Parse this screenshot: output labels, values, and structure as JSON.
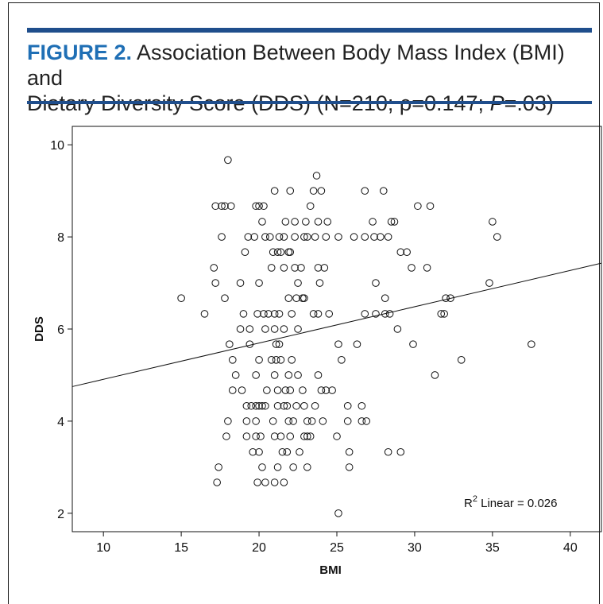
{
  "caption": {
    "label": "FIGURE 2.",
    "line1": " Association Between Body Mass Index (BMI) and",
    "line2_pre": "Dietary Diversity Score (DDS) (N=210; ρ=0.147; ",
    "line2_p": "P",
    "line2_post": "=.03)"
  },
  "colors": {
    "accent_rule": "#1f4e8c",
    "label_blue": "#1f6fb5"
  },
  "chart_data": {
    "type": "scatter",
    "xlabel": "BMI",
    "ylabel": "DDS",
    "xlim": [
      8,
      42
    ],
    "ylim": [
      1.6,
      10.4
    ],
    "xticks": [
      10,
      15,
      20,
      25,
      30,
      35,
      40
    ],
    "yticks": [
      2,
      4,
      6,
      8,
      10
    ],
    "grid": false,
    "fit_line": {
      "label": "R² Linear = 0.026",
      "r2_text": "R",
      "r2_sup": "2",
      "r2_rest": " Linear = 0.026",
      "x0": 8,
      "y0": 4.75,
      "x1": 42,
      "y1": 7.43
    },
    "points": [
      [
        18.0,
        9.67
      ],
      [
        23.7,
        9.33
      ],
      [
        21.0,
        9.0
      ],
      [
        22.0,
        9.0
      ],
      [
        23.5,
        9.0
      ],
      [
        24.0,
        9.0
      ],
      [
        26.8,
        9.0
      ],
      [
        28.0,
        9.0
      ],
      [
        17.2,
        8.67
      ],
      [
        17.6,
        8.67
      ],
      [
        17.8,
        8.67
      ],
      [
        18.2,
        8.67
      ],
      [
        19.8,
        8.67
      ],
      [
        20.0,
        8.67
      ],
      [
        20.3,
        8.67
      ],
      [
        23.3,
        8.67
      ],
      [
        30.2,
        8.67
      ],
      [
        31.0,
        8.67
      ],
      [
        20.2,
        8.33
      ],
      [
        21.7,
        8.33
      ],
      [
        22.3,
        8.33
      ],
      [
        23.0,
        8.33
      ],
      [
        23.8,
        8.33
      ],
      [
        24.4,
        8.33
      ],
      [
        27.3,
        8.33
      ],
      [
        28.5,
        8.33
      ],
      [
        28.7,
        8.33
      ],
      [
        35.0,
        8.33
      ],
      [
        17.6,
        8.0
      ],
      [
        19.3,
        8.0
      ],
      [
        19.7,
        8.0
      ],
      [
        20.4,
        8.0
      ],
      [
        20.7,
        8.0
      ],
      [
        21.3,
        8.0
      ],
      [
        21.6,
        8.0
      ],
      [
        22.3,
        8.0
      ],
      [
        22.9,
        8.0
      ],
      [
        23.1,
        8.0
      ],
      [
        23.6,
        8.0
      ],
      [
        24.3,
        8.0
      ],
      [
        25.1,
        8.0
      ],
      [
        26.1,
        8.0
      ],
      [
        26.8,
        8.0
      ],
      [
        27.4,
        8.0
      ],
      [
        27.8,
        8.0
      ],
      [
        28.3,
        8.0
      ],
      [
        35.3,
        8.0
      ],
      [
        19.1,
        7.67
      ],
      [
        20.9,
        7.67
      ],
      [
        21.2,
        7.67
      ],
      [
        21.4,
        7.67
      ],
      [
        21.9,
        7.67
      ],
      [
        22.0,
        7.67
      ],
      [
        29.1,
        7.67
      ],
      [
        29.5,
        7.67
      ],
      [
        17.1,
        7.33
      ],
      [
        20.8,
        7.33
      ],
      [
        21.6,
        7.33
      ],
      [
        22.3,
        7.33
      ],
      [
        22.7,
        7.33
      ],
      [
        23.8,
        7.33
      ],
      [
        24.2,
        7.33
      ],
      [
        29.8,
        7.33
      ],
      [
        30.8,
        7.33
      ],
      [
        17.2,
        7.0
      ],
      [
        18.8,
        7.0
      ],
      [
        20.0,
        7.0
      ],
      [
        22.5,
        7.0
      ],
      [
        23.9,
        7.0
      ],
      [
        27.5,
        7.0
      ],
      [
        34.8,
        7.0
      ],
      [
        15.0,
        6.67
      ],
      [
        17.8,
        6.67
      ],
      [
        21.9,
        6.67
      ],
      [
        22.4,
        6.67
      ],
      [
        22.8,
        6.67
      ],
      [
        22.9,
        6.67
      ],
      [
        28.1,
        6.67
      ],
      [
        32.0,
        6.67
      ],
      [
        32.3,
        6.67
      ],
      [
        16.5,
        6.33
      ],
      [
        19.0,
        6.33
      ],
      [
        19.9,
        6.33
      ],
      [
        20.3,
        6.33
      ],
      [
        20.6,
        6.33
      ],
      [
        21.0,
        6.33
      ],
      [
        21.3,
        6.33
      ],
      [
        22.1,
        6.33
      ],
      [
        23.5,
        6.33
      ],
      [
        23.8,
        6.33
      ],
      [
        24.5,
        6.33
      ],
      [
        26.8,
        6.33
      ],
      [
        27.5,
        6.33
      ],
      [
        28.1,
        6.33
      ],
      [
        28.4,
        6.33
      ],
      [
        31.7,
        6.33
      ],
      [
        31.9,
        6.33
      ],
      [
        18.8,
        6.0
      ],
      [
        19.4,
        6.0
      ],
      [
        20.4,
        6.0
      ],
      [
        21.0,
        6.0
      ],
      [
        21.6,
        6.0
      ],
      [
        22.5,
        6.0
      ],
      [
        28.9,
        6.0
      ],
      [
        18.1,
        5.67
      ],
      [
        19.4,
        5.67
      ],
      [
        21.1,
        5.67
      ],
      [
        21.3,
        5.67
      ],
      [
        25.1,
        5.67
      ],
      [
        26.3,
        5.67
      ],
      [
        29.9,
        5.67
      ],
      [
        37.5,
        5.67
      ],
      [
        18.3,
        5.33
      ],
      [
        20.0,
        5.33
      ],
      [
        20.8,
        5.33
      ],
      [
        21.1,
        5.33
      ],
      [
        21.4,
        5.33
      ],
      [
        22.1,
        5.33
      ],
      [
        25.3,
        5.33
      ],
      [
        33.0,
        5.33
      ],
      [
        18.5,
        5.0
      ],
      [
        19.8,
        5.0
      ],
      [
        21.0,
        5.0
      ],
      [
        21.9,
        5.0
      ],
      [
        22.5,
        5.0
      ],
      [
        23.8,
        5.0
      ],
      [
        31.3,
        5.0
      ],
      [
        18.3,
        4.67
      ],
      [
        18.9,
        4.67
      ],
      [
        20.5,
        4.67
      ],
      [
        21.2,
        4.67
      ],
      [
        21.7,
        4.67
      ],
      [
        22.0,
        4.67
      ],
      [
        22.8,
        4.67
      ],
      [
        24.0,
        4.67
      ],
      [
        24.3,
        4.67
      ],
      [
        24.7,
        4.67
      ],
      [
        19.2,
        4.33
      ],
      [
        19.5,
        4.33
      ],
      [
        19.8,
        4.33
      ],
      [
        20.0,
        4.33
      ],
      [
        20.2,
        4.33
      ],
      [
        20.4,
        4.33
      ],
      [
        21.2,
        4.33
      ],
      [
        21.6,
        4.33
      ],
      [
        21.8,
        4.33
      ],
      [
        22.4,
        4.33
      ],
      [
        22.9,
        4.33
      ],
      [
        23.6,
        4.33
      ],
      [
        25.7,
        4.33
      ],
      [
        26.6,
        4.33
      ],
      [
        18.0,
        4.0
      ],
      [
        19.2,
        4.0
      ],
      [
        19.8,
        4.0
      ],
      [
        20.9,
        4.0
      ],
      [
        21.9,
        4.0
      ],
      [
        22.2,
        4.0
      ],
      [
        23.1,
        4.0
      ],
      [
        23.4,
        4.0
      ],
      [
        24.1,
        4.0
      ],
      [
        25.7,
        4.0
      ],
      [
        26.6,
        4.0
      ],
      [
        26.9,
        4.0
      ],
      [
        17.9,
        3.67
      ],
      [
        19.2,
        3.67
      ],
      [
        19.8,
        3.67
      ],
      [
        20.1,
        3.67
      ],
      [
        21.0,
        3.67
      ],
      [
        21.4,
        3.67
      ],
      [
        22.0,
        3.67
      ],
      [
        22.9,
        3.67
      ],
      [
        23.1,
        3.67
      ],
      [
        23.3,
        3.67
      ],
      [
        25.0,
        3.67
      ],
      [
        19.6,
        3.33
      ],
      [
        20.0,
        3.33
      ],
      [
        21.5,
        3.33
      ],
      [
        21.8,
        3.33
      ],
      [
        22.6,
        3.33
      ],
      [
        25.8,
        3.33
      ],
      [
        28.3,
        3.33
      ],
      [
        29.1,
        3.33
      ],
      [
        17.4,
        3.0
      ],
      [
        20.2,
        3.0
      ],
      [
        21.2,
        3.0
      ],
      [
        22.2,
        3.0
      ],
      [
        23.1,
        3.0
      ],
      [
        25.8,
        3.0
      ],
      [
        17.3,
        2.67
      ],
      [
        19.9,
        2.67
      ],
      [
        20.4,
        2.67
      ],
      [
        21.0,
        2.67
      ],
      [
        21.6,
        2.67
      ],
      [
        25.1,
        2.0
      ]
    ]
  }
}
